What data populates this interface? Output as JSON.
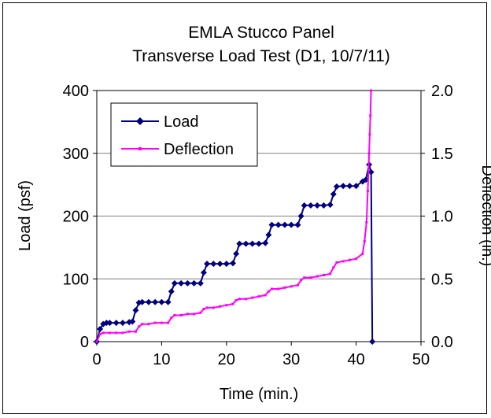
{
  "chart_data": {
    "type": "line",
    "title": "EMLA Stucco Panel",
    "subtitle": "Transverse Load Test (D1, 10/7/11)",
    "xlabel": "Time (min.)",
    "ylabel": "Load (psf)",
    "y2label": "Deflection (in.)",
    "xlim": [
      0,
      50
    ],
    "ylim": [
      0,
      400
    ],
    "y2lim": [
      0,
      2.0
    ],
    "xticks": [
      "0",
      "10",
      "20",
      "30",
      "40",
      "50"
    ],
    "yticks": [
      "0",
      "100",
      "200",
      "300",
      "400"
    ],
    "y2ticks": [
      "0.0",
      "0.5",
      "1.0",
      "1.5",
      "2.0"
    ],
    "grid": true,
    "legend_position": "top-left",
    "series": [
      {
        "name": "Load",
        "axis": "left",
        "color": "#000080",
        "x": [
          0,
          0.5,
          1,
          1.5,
          2,
          3,
          4,
          5,
          5.5,
          6,
          6.5,
          7,
          8,
          9,
          10,
          11,
          11.5,
          12,
          13,
          14,
          15,
          16,
          16.5,
          17,
          18,
          19,
          20,
          21,
          21.5,
          22,
          23,
          24,
          25,
          26,
          26.5,
          27,
          28,
          29,
          30,
          31,
          31.5,
          32,
          33,
          34,
          35,
          36,
          36.5,
          37,
          38,
          39,
          40,
          41,
          41.5,
          42,
          42.3,
          42.5
        ],
        "values": [
          0,
          20,
          28,
          30,
          30,
          30,
          30,
          31,
          32,
          50,
          62,
          63,
          63,
          63,
          63,
          63,
          80,
          93,
          93,
          93,
          93,
          93,
          110,
          124,
          124,
          124,
          124,
          125,
          140,
          156,
          156,
          156,
          156,
          157,
          170,
          186,
          186,
          186,
          186,
          186,
          200,
          217,
          217,
          217,
          217,
          218,
          235,
          247,
          248,
          248,
          248,
          255,
          258,
          282,
          270,
          0
        ]
      },
      {
        "name": "Deflection",
        "axis": "right",
        "color": "#ff00ff",
        "x": [
          0,
          0.5,
          1,
          2,
          3,
          4,
          5,
          6,
          6.5,
          7,
          8,
          9,
          10,
          11,
          11.5,
          12,
          13,
          14,
          15,
          16,
          16.5,
          17,
          18,
          19,
          20,
          21,
          21.5,
          22,
          23,
          24,
          25,
          26,
          26.5,
          27,
          28,
          29,
          30,
          31,
          31.5,
          32,
          33,
          34,
          35,
          36,
          36.5,
          37,
          38,
          39,
          40,
          41,
          41.3,
          41.6,
          41.8,
          42,
          42.1,
          42.2,
          42.3
        ],
        "values": [
          0,
          0.06,
          0.07,
          0.07,
          0.07,
          0.07,
          0.08,
          0.08,
          0.12,
          0.14,
          0.14,
          0.15,
          0.15,
          0.15,
          0.19,
          0.21,
          0.21,
          0.22,
          0.22,
          0.23,
          0.26,
          0.27,
          0.27,
          0.28,
          0.29,
          0.3,
          0.33,
          0.34,
          0.34,
          0.35,
          0.36,
          0.37,
          0.4,
          0.42,
          0.42,
          0.43,
          0.44,
          0.45,
          0.49,
          0.51,
          0.51,
          0.52,
          0.53,
          0.54,
          0.59,
          0.63,
          0.64,
          0.65,
          0.66,
          0.7,
          0.8,
          0.95,
          1.2,
          1.5,
          1.65,
          1.8,
          2.0
        ]
      }
    ]
  }
}
